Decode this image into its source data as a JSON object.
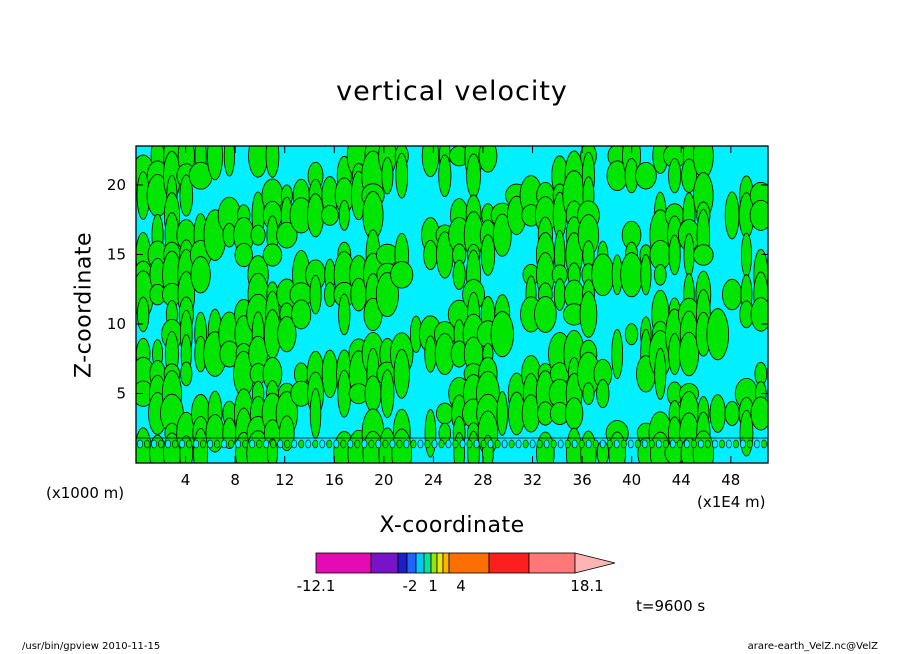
{
  "chart_data": {
    "type": "heatmap",
    "title": "vertical velocity",
    "xlabel": "X-coordinate",
    "ylabel": "Z-coordinate",
    "x_unit_left": "(x1000 m)",
    "x_unit_right": "(x1E4 m)",
    "x_ticks": [
      "4",
      "8",
      "12",
      "16",
      "20",
      "24",
      "28",
      "32",
      "36",
      "40",
      "44",
      "48"
    ],
    "y_ticks": [
      "5",
      "10",
      "15",
      "20"
    ],
    "xlim": [
      0,
      51
    ],
    "ylim": [
      0,
      22.8
    ],
    "grid": false,
    "colorbar": {
      "labels": [
        "-12.1",
        "-2",
        "1",
        "4",
        "18.1"
      ],
      "colors": [
        "#e60ab4",
        "#7814c8",
        "#1e1ec8",
        "#1e64ff",
        "#00c8ff",
        "#00e696",
        "#96e600",
        "#f0e600",
        "#ffb400",
        "#ff6e00",
        "#ff1e1e",
        "#ff7878",
        "#ffb4b4"
      ]
    },
    "dominant_fill": {
      "positive": "#00e600",
      "negative": "#00f0ff"
    },
    "time_label": "t=9600 s"
  },
  "footer": {
    "left": "/usr/bin/gpview  2010-11-15",
    "right": "arare-earth_VelZ.nc@VelZ"
  }
}
